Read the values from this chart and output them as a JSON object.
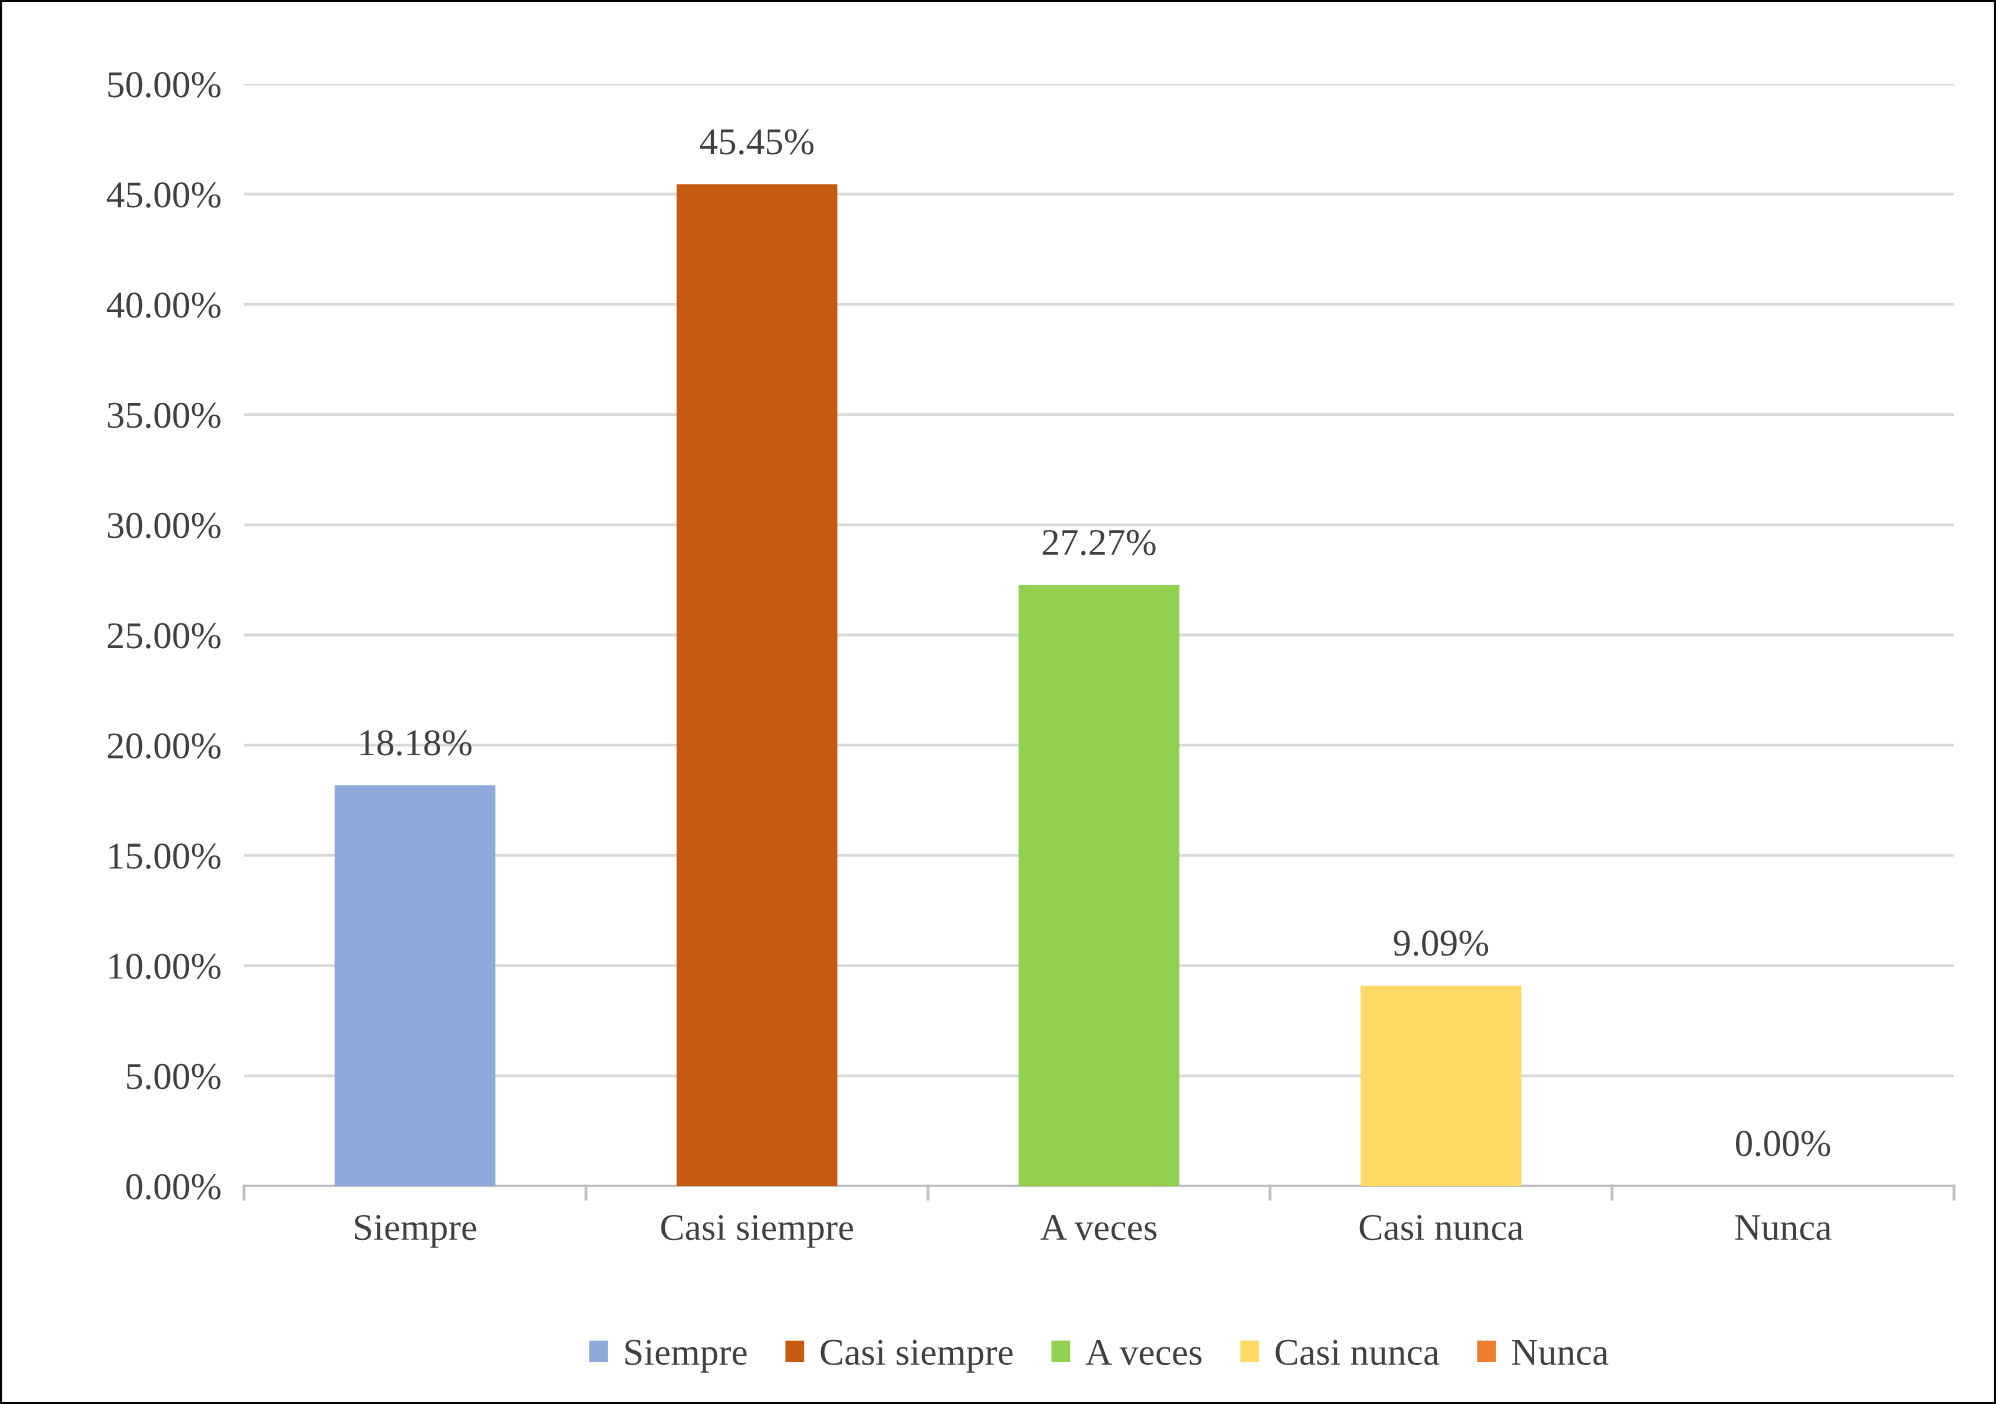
{
  "chart_data": {
    "type": "bar",
    "categories": [
      "Siempre",
      "Casi siempre",
      "A veces",
      "Casi nunca",
      "Nunca"
    ],
    "series": [
      {
        "name": "Siempre",
        "color": "#8eaadb",
        "values": [
          18.18,
          null,
          null,
          null,
          null
        ],
        "value_labels": [
          "18.18%",
          null,
          null,
          null,
          null
        ]
      },
      {
        "name": "Casi siempre",
        "color": "#c55a11",
        "values": [
          null,
          45.45,
          null,
          null,
          null
        ],
        "value_labels": [
          null,
          "45.45%",
          null,
          null,
          null
        ]
      },
      {
        "name": "A veces",
        "color": "#92d050",
        "values": [
          null,
          null,
          27.27,
          null,
          null
        ],
        "value_labels": [
          null,
          null,
          "27.27%",
          null,
          null
        ]
      },
      {
        "name": "Casi nunca",
        "color": "#ffd966",
        "values": [
          null,
          null,
          null,
          9.09,
          null
        ],
        "value_labels": [
          null,
          null,
          null,
          "9.09%",
          null
        ]
      },
      {
        "name": "Nunca",
        "color": "#ed7d31",
        "values": [
          null,
          null,
          null,
          null,
          0
        ],
        "value_labels": [
          null,
          null,
          null,
          null,
          "0.00%"
        ]
      }
    ],
    "ylim": [
      0,
      50
    ],
    "yticks": [
      {
        "value": 0,
        "label": "0.00%"
      },
      {
        "value": 5,
        "label": "5.00%"
      },
      {
        "value": 10,
        "label": "10.00%"
      },
      {
        "value": 15,
        "label": "15.00%"
      },
      {
        "value": 20,
        "label": "20.00%"
      },
      {
        "value": 25,
        "label": "25.00%"
      },
      {
        "value": 30,
        "label": "30.00%"
      },
      {
        "value": 35,
        "label": "35.00%"
      },
      {
        "value": 40,
        "label": "40.00%"
      },
      {
        "value": 45,
        "label": "45.00%"
      },
      {
        "value": 50,
        "label": "50.00%"
      }
    ],
    "grid": "y",
    "legend": "bottom"
  }
}
